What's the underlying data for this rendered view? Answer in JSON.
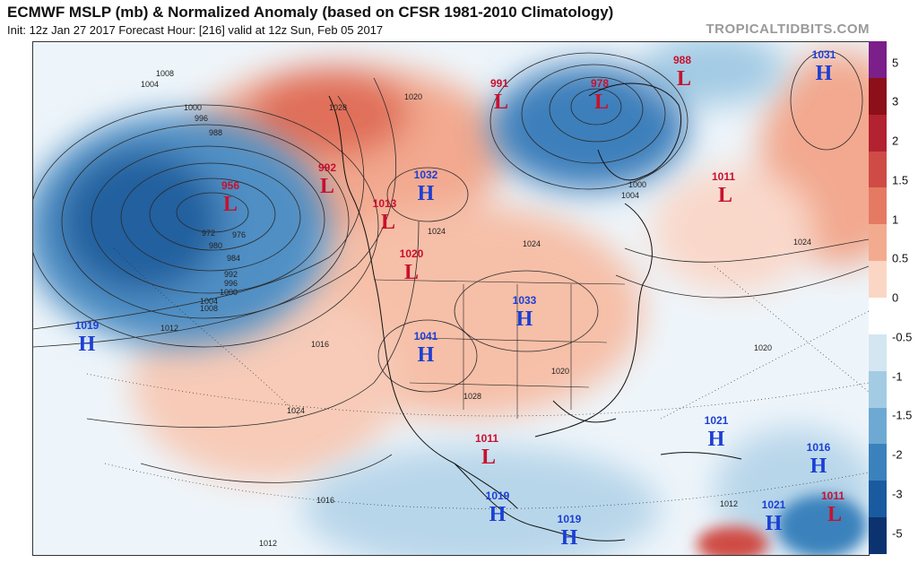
{
  "header": {
    "title": "ECMWF MSLP (mb) & Normalized Anomaly (based on CFSR 1981-2010 Climatology)",
    "subtitle": "Init: 12z Jan 27 2017   Forecast Hour: [216]   valid at 12z Sun, Feb 05 2017",
    "credit": "TROPICALTIDBITS.COM"
  },
  "colorbar": {
    "labels": [
      "5",
      "3",
      "2",
      "1.5",
      "1",
      "0.5",
      "0",
      "-0.5",
      "-1",
      "-1.5",
      "-2",
      "-3",
      "-5"
    ],
    "colors": [
      "#7b1f8a",
      "#8c0f1a",
      "#b22231",
      "#cf4b45",
      "#e57a63",
      "#f3ab8f",
      "#fbd6c4",
      "#ffffff",
      "#d3e6f1",
      "#a3cbe4",
      "#6ea9d3",
      "#3b82bc",
      "#1a5a9e",
      "#0c3270"
    ]
  },
  "map": {
    "pressure_centers": [
      {
        "id": "H1",
        "type": "H",
        "value": "1031"
      },
      {
        "id": "H2",
        "type": "H",
        "value": "1032"
      },
      {
        "id": "H3",
        "type": "H",
        "value": "1033"
      },
      {
        "id": "H4",
        "type": "H",
        "value": "1041"
      },
      {
        "id": "H5",
        "type": "H",
        "value": "1019"
      },
      {
        "id": "H6",
        "type": "H",
        "value": "1021"
      },
      {
        "id": "H7",
        "type": "H",
        "value": "1016"
      },
      {
        "id": "H8",
        "type": "H",
        "value": "1019"
      },
      {
        "id": "H9",
        "type": "H",
        "value": "1019"
      },
      {
        "id": "H10",
        "type": "H",
        "value": "1021"
      },
      {
        "id": "L1",
        "type": "L",
        "value": "956"
      },
      {
        "id": "L2",
        "type": "L",
        "value": "992"
      },
      {
        "id": "L3",
        "type": "L",
        "value": "1013"
      },
      {
        "id": "L4",
        "type": "L",
        "value": "1020"
      },
      {
        "id": "L5",
        "type": "L",
        "value": "991"
      },
      {
        "id": "L6",
        "type": "L",
        "value": "978"
      },
      {
        "id": "L7",
        "type": "L",
        "value": "988"
      },
      {
        "id": "L8",
        "type": "L",
        "value": "1011"
      },
      {
        "id": "L9",
        "type": "L",
        "value": "1011"
      },
      {
        "id": "L10",
        "type": "L",
        "value": "1011"
      }
    ],
    "isobar_labels": [
      "1008",
      "1004",
      "1000",
      "996",
      "988",
      "1028",
      "1020",
      "1024",
      "1016",
      "1012",
      "1024",
      "1028",
      "1020",
      "1024",
      "1016",
      "1012",
      "1012",
      "1008",
      "1004",
      "1000",
      "996",
      "992",
      "984",
      "980",
      "976",
      "972",
      "1004",
      "1000",
      "1020",
      "1024"
    ]
  }
}
